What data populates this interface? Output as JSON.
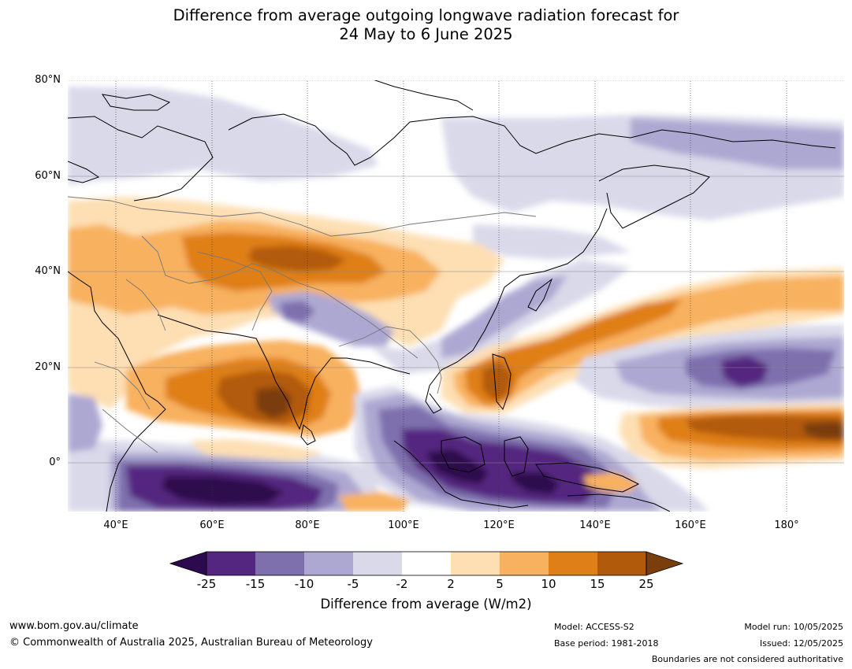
{
  "title": {
    "line1": "Difference from average outgoing longwave radiation forecast for",
    "line2": "24 May to 6 June 2025"
  },
  "map": {
    "lat_labels": [
      "80°N",
      "60°N",
      "40°N",
      "20°N",
      "0°"
    ],
    "lon_labels": [
      "40°E",
      "60°E",
      "80°E",
      "100°E",
      "120°E",
      "140°E",
      "160°E",
      "180°"
    ],
    "extent": {
      "lon_min": 30,
      "lon_max": 192,
      "lat_min": -10,
      "lat_max": 80
    },
    "gridlines": true
  },
  "colorbar": {
    "ticks": [
      "-25",
      "-15",
      "-10",
      "-5",
      "-2",
      "2",
      "5",
      "10",
      "15",
      "25"
    ],
    "colors": [
      "#2d0a4e",
      "#54267f",
      "#7e6fad",
      "#ada8d2",
      "#d9d9ea",
      "#ffffff",
      "#fddfb3",
      "#f8b15f",
      "#df7f17",
      "#b25a0c",
      "#7a3d0c"
    ],
    "label": "Difference from average (W/m2)",
    "extend": "both"
  },
  "footer": {
    "website": "www.bom.gov.au/climate",
    "copyright": "© Commonwealth of Australia 2025, Australian Bureau of Meteorology",
    "model": "Model: ACCESS-S2",
    "base_period": "Base period: 1981-2018",
    "model_run": "Model run: 10/05/2025",
    "issued": "Issued: 12/05/2025",
    "disclaimer": "Boundaries are not considered authoritative"
  }
}
